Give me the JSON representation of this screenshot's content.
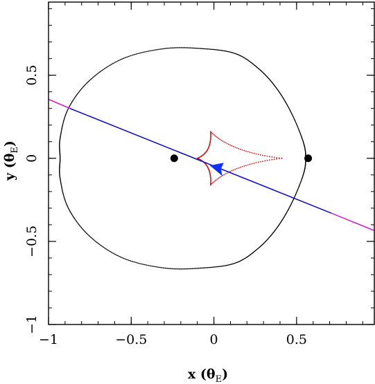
{
  "chart_data": {
    "type": "scatter",
    "title": "",
    "xlabel": "x (θ_E)",
    "ylabel": "y (θ_E)",
    "xlabel_main": "x",
    "xlabel_unit": "θ",
    "xlabel_sub": "E",
    "ylabel_main": "y",
    "ylabel_unit": "θ",
    "ylabel_sub": "E",
    "xlim": [
      -1.0,
      0.97
    ],
    "ylim": [
      -1.0,
      0.94
    ],
    "x_ticks": [
      -1,
      -0.5,
      0,
      0.5
    ],
    "x_tick_labels": [
      "−1",
      "−0.5",
      "0",
      "0.5"
    ],
    "y_ticks": [
      -1,
      -0.5,
      0,
      0.5
    ],
    "y_tick_labels": [
      "−1",
      "−0.5",
      "0",
      "0.5"
    ],
    "x_minor_step": 0.1,
    "y_minor_step": 0.1,
    "grid": false,
    "legend": "none",
    "series": [
      {
        "kind": "critical_curve",
        "color": "#000000",
        "points": [
          [
            0.555,
            0.0
          ],
          [
            0.54,
            0.1
          ],
          [
            0.47,
            0.27
          ],
          [
            0.38,
            0.42
          ],
          [
            0.27,
            0.54
          ],
          [
            0.13,
            0.63
          ],
          [
            -0.07,
            0.66
          ],
          [
            -0.3,
            0.66
          ],
          [
            -0.55,
            0.6
          ],
          [
            -0.75,
            0.47
          ],
          [
            -0.88,
            0.3
          ],
          [
            -0.93,
            0.12
          ],
          [
            -0.93,
            0.0
          ],
          [
            -0.93,
            -0.12
          ],
          [
            -0.88,
            -0.3
          ],
          [
            -0.75,
            -0.47
          ],
          [
            -0.55,
            -0.6
          ],
          [
            -0.3,
            -0.66
          ],
          [
            -0.07,
            -0.66
          ],
          [
            0.13,
            -0.63
          ],
          [
            0.27,
            -0.54
          ],
          [
            0.38,
            -0.42
          ],
          [
            0.47,
            -0.27
          ],
          [
            0.54,
            -0.1
          ],
          [
            0.555,
            0.0
          ]
        ]
      },
      {
        "kind": "caustic",
        "color": "#d01010",
        "cusps": [
          [
            0.41,
            0.0
          ],
          [
            -0.02,
            0.16
          ],
          [
            -0.1,
            0.0
          ],
          [
            -0.02,
            -0.16
          ]
        ]
      },
      {
        "kind": "source_trajectory",
        "color": "#1010c0",
        "segment": [
          [
            -0.87,
            0.3
          ],
          [
            0.71,
            -0.33
          ]
        ]
      },
      {
        "kind": "trajectory_extension",
        "color": "#d020d0",
        "left": [
          [
            -1.0,
            0.355
          ],
          [
            -0.87,
            0.3
          ]
        ],
        "right": [
          [
            0.71,
            -0.33
          ],
          [
            0.97,
            -0.435
          ]
        ]
      },
      {
        "kind": "source_marker",
        "color": "#1030ff",
        "at": [
          0.03,
          -0.06
        ],
        "direction": "left"
      },
      {
        "kind": "lens_positions",
        "color": "#000000",
        "points": [
          [
            -0.24,
            0.0
          ],
          [
            0.57,
            0.0
          ]
        ]
      }
    ]
  }
}
